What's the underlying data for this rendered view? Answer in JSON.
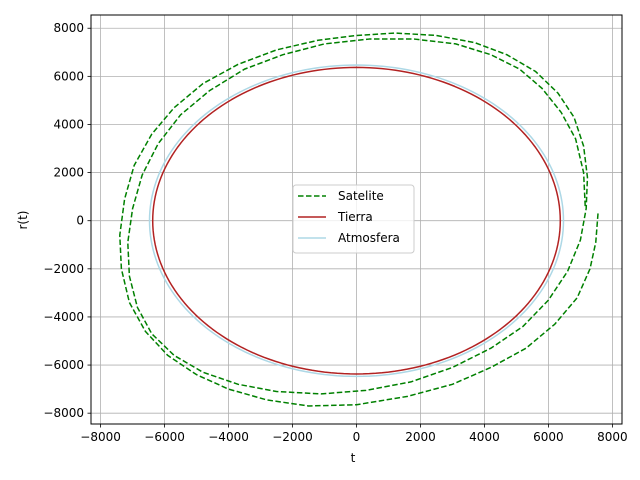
{
  "chart_data": {
    "type": "line",
    "title": "",
    "xlabel": "t",
    "ylabel": "r(t)",
    "xlim": [
      -8300,
      8300
    ],
    "ylim": [
      -8450,
      8550
    ],
    "grid": true,
    "legend_position": "center",
    "x_ticks": [
      -8000,
      -6000,
      -4000,
      -2000,
      0,
      2000,
      4000,
      6000,
      8000
    ],
    "y_ticks": [
      -8000,
      -6000,
      -4000,
      -2000,
      0,
      2000,
      4000,
      6000,
      8000
    ],
    "x_tick_labels": [
      "−8000",
      "−6000",
      "−4000",
      "−2000",
      "0",
      "2000",
      "4000",
      "6000",
      "8000"
    ],
    "y_tick_labels": [
      "−8000",
      "−6000",
      "−4000",
      "−2000",
      "0",
      "2000",
      "4000",
      "6000",
      "8000"
    ],
    "series": [
      {
        "name": "Satelite",
        "style": "dashed",
        "color": "#008000",
        "x": [
          7550,
          7480,
          7300,
          6900,
          6200,
          5300,
          4200,
          3000,
          1600,
          0,
          -1500,
          -2800,
          -4000,
          -5000,
          -5900,
          -6600,
          -7100,
          -7350,
          -7400,
          -7250,
          -6950,
          -6400,
          -5700,
          -4800,
          -3700,
          -2500,
          -1200,
          0,
          1200,
          2500,
          3700,
          4700,
          5600,
          6300,
          6800,
          7100,
          7220,
          7180,
          7000,
          6600,
          6000,
          5200,
          4200,
          3000,
          1700,
          300,
          -1100,
          -2500,
          -3700,
          -4800,
          -5700,
          -6400,
          -6850,
          -7100,
          -7150,
          -7000,
          -6700,
          -6200,
          -5500,
          -4600,
          -3500,
          -2300,
          -1000,
          400,
          1800,
          3100,
          4200,
          5100,
          5800,
          6400,
          6850,
          7100,
          7150
        ],
        "y": [
          300,
          -900,
          -2000,
          -3200,
          -4300,
          -5300,
          -6100,
          -6800,
          -7300,
          -7650,
          -7700,
          -7450,
          -7000,
          -6400,
          -5600,
          -4600,
          -3400,
          -2000,
          -600,
          900,
          2300,
          3600,
          4700,
          5700,
          6500,
          7100,
          7500,
          7700,
          7800,
          7700,
          7400,
          6900,
          6200,
          5300,
          4300,
          3100,
          1800,
          500,
          -800,
          -2100,
          -3300,
          -4400,
          -5300,
          -6100,
          -6700,
          -7050,
          -7200,
          -7100,
          -6800,
          -6300,
          -5600,
          -4700,
          -3600,
          -2300,
          -900,
          500,
          1900,
          3200,
          4400,
          5400,
          6300,
          6900,
          7350,
          7550,
          7550,
          7350,
          6900,
          6300,
          5500,
          4500,
          3400,
          2000,
          600
        ]
      },
      {
        "name": "Tierra",
        "style": "solid",
        "color": "#b22222",
        "shape": "circle",
        "radius": 6371
      },
      {
        "name": "Atmosfera",
        "style": "solid",
        "color": "#add8e6",
        "shape": "circle",
        "radius": 6471
      }
    ]
  }
}
